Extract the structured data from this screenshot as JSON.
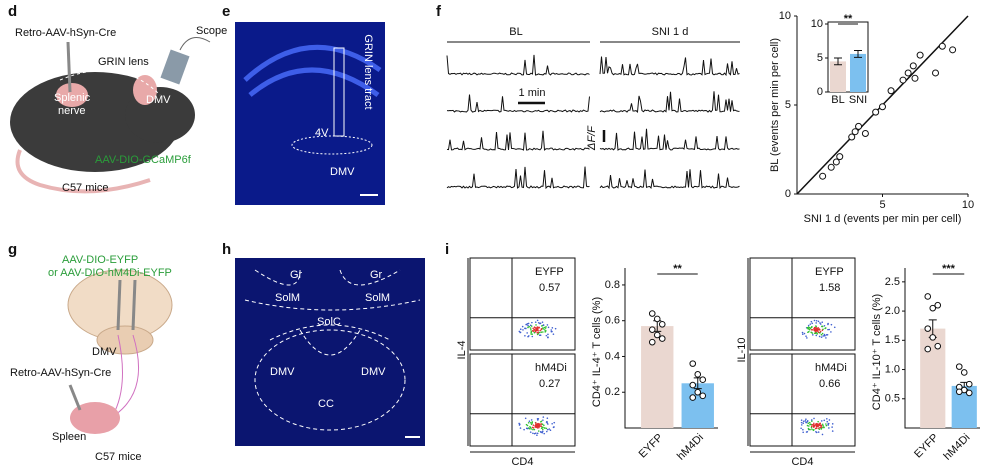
{
  "panels": {
    "d": {
      "label": "d",
      "virus": "Retro-AAV-hSyn-Cre",
      "scope": "Scope",
      "lens": "GRIN lens",
      "nerve": [
        "Splenic",
        "nerve"
      ],
      "dmv": "DMV",
      "reporter": "AAV-DIO-GCaMP6f",
      "mice": "C57 mice"
    },
    "e": {
      "label": "e",
      "tract": "GRIN lens tract",
      "ventricle": "4V",
      "dmv": "DMV"
    },
    "f": {
      "label": "f",
      "conditions": [
        "BL",
        "SNI 1 d"
      ],
      "time_scale": "1 min",
      "signal_scale": "ΔF/F"
    },
    "g": {
      "label": "g",
      "viruses": [
        "AAV-DIO-EYFP",
        "or AAV-DIO-hM4Di-EYFP"
      ],
      "dmv": "DMV",
      "retro": "Retro-AAV-hSyn-Cre",
      "spleen": "Spleen",
      "mice": "C57 mice"
    },
    "h": {
      "label": "h",
      "regions": [
        "Gr",
        "Gr",
        "SolM",
        "SolM",
        "SolC",
        "DMV",
        "DMV",
        "CC"
      ]
    },
    "i": {
      "label": "i",
      "flow": [
        {
          "y_axis": "IL-4",
          "x_axis": "CD4",
          "groups": [
            {
              "name": "EYFP",
              "value": 0.57
            },
            {
              "name": "hM4Di",
              "value": 0.27
            }
          ]
        },
        {
          "y_axis": "IL-10",
          "x_axis": "CD4",
          "groups": [
            {
              "name": "EYFP",
              "value": 1.58
            },
            {
              "name": "hM4Di",
              "value": 0.66
            }
          ]
        }
      ]
    }
  },
  "chart_data": [
    {
      "type": "scatter",
      "xlabel": "SNI 1 d (events per min per cell)",
      "ylabel": "BL (events per min per cell)",
      "x": [
        1.5,
        2.0,
        2.3,
        2.5,
        3.2,
        3.4,
        3.6,
        4.0,
        4.6,
        5.0,
        5.5,
        6.2,
        6.5,
        6.8,
        7.2,
        6.9,
        8.1,
        8.5,
        9.1
      ],
      "values": [
        1.0,
        1.5,
        1.8,
        2.1,
        3.2,
        3.5,
        3.8,
        3.4,
        4.6,
        4.9,
        5.8,
        6.4,
        6.8,
        7.2,
        7.8,
        6.5,
        6.8,
        8.3,
        8.1
      ],
      "xlim": [
        0,
        10
      ],
      "ylim": [
        0,
        10
      ],
      "xticks": [
        5,
        10
      ],
      "yticks": [
        0,
        5,
        10
      ]
    },
    {
      "type": "bar",
      "categories": [
        "BL",
        "SNI"
      ],
      "values": [
        4.5,
        5.6
      ],
      "errors": [
        0.5,
        0.5
      ],
      "ylim": [
        0,
        10
      ],
      "yticks": [
        0,
        5,
        10
      ],
      "annotation": "**",
      "colors": [
        "#ead7d0",
        "#7cc0ef"
      ]
    },
    {
      "type": "bar",
      "ylabel": "CD4⁺ IL-4⁺ T cells (%)",
      "categories": [
        "EYFP",
        "hM4Di"
      ],
      "values": [
        0.57,
        0.25
      ],
      "errors": [
        0.03,
        0.03
      ],
      "points": [
        [
          0.64,
          0.61,
          0.58,
          0.55,
          0.52,
          0.5,
          0.48
        ],
        [
          0.36,
          0.3,
          0.27,
          0.24,
          0.2,
          0.18,
          0.17
        ]
      ],
      "ylim": [
        0,
        0.85
      ],
      "yticks": [
        0.2,
        0.4,
        0.6,
        0.8
      ],
      "annotation": "**",
      "colors": [
        "#ead7d0",
        "#7cc0ef"
      ]
    },
    {
      "type": "bar",
      "ylabel": "CD4⁺ IL-10⁺ T cells (%)",
      "categories": [
        "EYFP",
        "hM4Di"
      ],
      "values": [
        1.7,
        0.72
      ],
      "errors": [
        0.15,
        0.06
      ],
      "points": [
        [
          2.25,
          2.05,
          2.1,
          1.7,
          1.55,
          1.4,
          1.35
        ],
        [
          1.05,
          0.95,
          0.75,
          0.7,
          0.65,
          0.6,
          0.62
        ]
      ],
      "ylim": [
        0,
        2.6
      ],
      "yticks": [
        0.5,
        {
          "value": 1,
          "label": "1.0"
        },
        1.5,
        {
          "value": 2,
          "label": "2.0"
        },
        2.5
      ],
      "annotation": "***",
      "colors": [
        "#ead7d0",
        "#7cc0ef"
      ]
    }
  ]
}
